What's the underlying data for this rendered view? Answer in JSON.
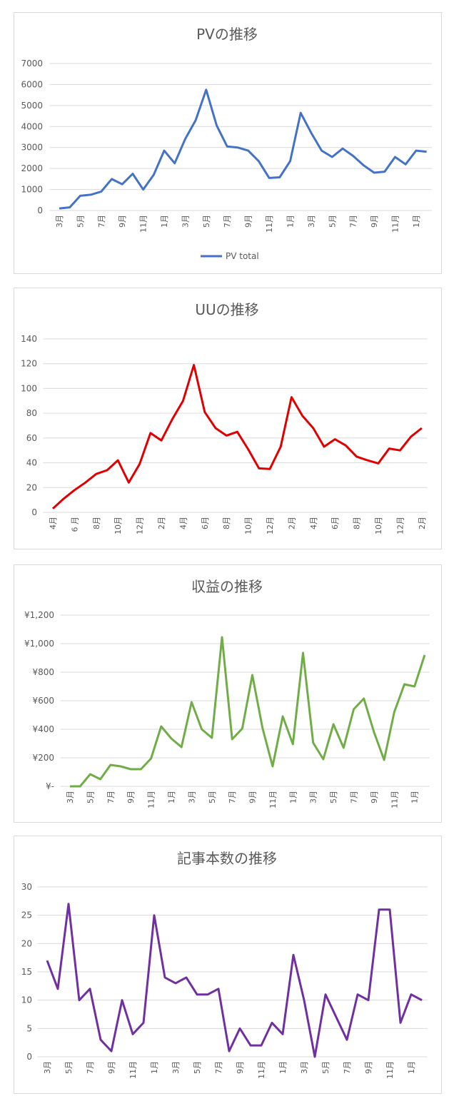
{
  "chart_data": [
    {
      "type": "line",
      "title": "PVの推移",
      "categories": [
        "3月",
        null,
        "5月",
        null,
        "7月",
        null,
        "9月",
        null,
        "11月",
        null,
        "1月",
        null,
        "3月",
        null,
        "5月",
        null,
        "7月",
        null,
        "9月",
        null,
        "11月",
        null,
        "1月",
        null,
        "3月",
        null,
        "5月",
        null,
        "7月",
        null,
        "9月",
        null,
        "11月",
        null,
        "1月",
        null
      ],
      "series": [
        {
          "name": "PV total",
          "color": "#4472c4",
          "values": [
            100,
            150,
            700,
            750,
            900,
            1500,
            1250,
            1750,
            1000,
            1700,
            2850,
            2250,
            3400,
            4300,
            5750,
            4050,
            3050,
            3000,
            2850,
            2350,
            1550,
            1580,
            2350,
            4650,
            3700,
            2850,
            2550,
            2950,
            2600,
            2150,
            1800,
            1850,
            2550,
            2200,
            2850,
            2800
          ]
        }
      ],
      "ylim": [
        0,
        7000
      ],
      "yticks": [
        0,
        1000,
        2000,
        3000,
        4000,
        5000,
        6000,
        7000
      ],
      "grid": true,
      "legend": "bottom"
    },
    {
      "type": "line",
      "title": "UUの推移",
      "categories": [
        "4月",
        null,
        "6 月",
        null,
        "8月",
        null,
        "10月",
        null,
        "12月",
        null,
        "2月",
        null,
        "4月",
        null,
        "6月",
        null,
        "8月",
        null,
        "10月",
        null,
        "12月",
        null,
        "2月",
        null,
        "4月",
        null,
        "6月",
        null,
        "8月",
        null,
        "10月",
        null,
        "12月",
        null,
        "2月"
      ],
      "series": [
        {
          "color": "#e00000",
          "values": [
            3,
            11,
            18,
            24,
            31,
            34,
            42,
            24,
            39,
            64,
            58,
            75,
            90,
            119,
            81,
            68,
            62,
            65,
            51,
            35.5,
            35,
            53,
            93,
            78,
            68,
            53,
            59,
            54,
            45,
            42,
            39.5,
            51.5,
            50,
            61,
            68
          ]
        }
      ],
      "ylim": [
        0,
        140
      ],
      "yticks": [
        0,
        20,
        40,
        60,
        80,
        100,
        120,
        140
      ],
      "grid": true
    },
    {
      "type": "line",
      "title": "収益の推移",
      "categories": [
        "3月",
        null,
        "5月",
        null,
        "7月",
        null,
        "9月",
        null,
        "11月",
        null,
        "1月",
        null,
        "3月",
        null,
        "5月",
        null,
        "7月",
        null,
        "9月",
        null,
        "11月",
        null,
        "1月",
        null,
        "3月",
        null,
        "5月",
        null,
        "7月",
        null,
        "9月",
        null,
        "11月",
        null,
        "1月",
        null
      ],
      "series": [
        {
          "color": "#70ad47",
          "values": [
            0,
            0,
            85,
            50,
            150,
            140,
            120,
            120,
            195,
            420,
            335,
            275,
            590,
            400,
            340,
            1045,
            330,
            405,
            780,
            410,
            140,
            490,
            295,
            935,
            305,
            190,
            435,
            270,
            540,
            615,
            380,
            185,
            520,
            715,
            700,
            920
          ]
        }
      ],
      "ylim": [
        0,
        1200
      ],
      "yticks": [
        {
          "value": 0,
          "label": "¥-"
        },
        {
          "value": 200,
          "label": "¥200"
        },
        {
          "value": 400,
          "label": "¥400"
        },
        {
          "value": 600,
          "label": "¥600"
        },
        {
          "value": 800,
          "label": "¥800"
        },
        {
          "value": 1000,
          "label": "¥1,000"
        },
        {
          "value": 1200,
          "label": "¥1,200"
        }
      ],
      "grid": true
    },
    {
      "type": "line",
      "title": "記事本数の推移",
      "categories": [
        "3月",
        null,
        "5月",
        null,
        "7月",
        null,
        "9月",
        null,
        "11月",
        null,
        "1月",
        null,
        "3月",
        null,
        "5月",
        null,
        "7月",
        null,
        "9月",
        null,
        "11月",
        null,
        "1月",
        null,
        "3月",
        null,
        "5月",
        null,
        "7月",
        null,
        "9月",
        null,
        "11月",
        null,
        "1月",
        null
      ],
      "series": [
        {
          "color": "#7030a0",
          "values": [
            17,
            12,
            27,
            10,
            12,
            3,
            1,
            10,
            4,
            6,
            25,
            14,
            13,
            14,
            11,
            11,
            12,
            1,
            5,
            2,
            2,
            6,
            4,
            18,
            10,
            0,
            11,
            7,
            3,
            11,
            10,
            26,
            26,
            6,
            11,
            10
          ]
        }
      ],
      "ylim": [
        0,
        30
      ],
      "yticks": [
        0,
        5,
        10,
        15,
        20,
        25,
        30
      ],
      "grid": true
    }
  ]
}
